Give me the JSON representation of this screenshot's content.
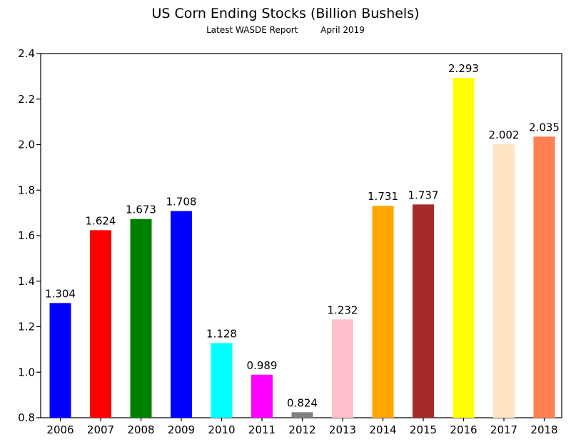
{
  "chart_data": {
    "type": "bar",
    "title": "US Corn Ending Stocks (Billion Bushels)",
    "subtitle_left": "Latest WASDE Report",
    "subtitle_right": "April 2019",
    "xlabel": "",
    "ylabel": "",
    "categories": [
      "2006",
      "2007",
      "2008",
      "2009",
      "2010",
      "2011",
      "2012",
      "2013",
      "2014",
      "2015",
      "2016",
      "2017",
      "2018"
    ],
    "values": [
      1.304,
      1.624,
      1.673,
      1.708,
      1.128,
      0.989,
      0.824,
      1.232,
      1.731,
      1.737,
      2.293,
      2.002,
      2.035
    ],
    "data_labels": [
      "1.304",
      "1.624",
      "1.673",
      "1.708",
      "1.128",
      "0.989",
      "0.824",
      "1.232",
      "1.731",
      "1.737",
      "2.293",
      "2.002",
      "2.035"
    ],
    "colors": [
      "#0000ff",
      "#ff0000",
      "#008000",
      "#0000ff",
      "#00ffff",
      "#ff00ff",
      "#808080",
      "#ffc0cb",
      "#ffa500",
      "#a52a2a",
      "#ffff00",
      "#ffe4c4",
      "#ff7f50"
    ],
    "ylim": [
      0.8,
      2.4
    ],
    "yticks": [
      0.8,
      1.0,
      1.2,
      1.4,
      1.6,
      1.8,
      2.0,
      2.2,
      2.4
    ],
    "ytick_labels": [
      "0.8",
      "1.0",
      "1.2",
      "1.4",
      "1.6",
      "1.8",
      "2.0",
      "2.2",
      "2.4"
    ],
    "grid": false,
    "legend": "none"
  }
}
